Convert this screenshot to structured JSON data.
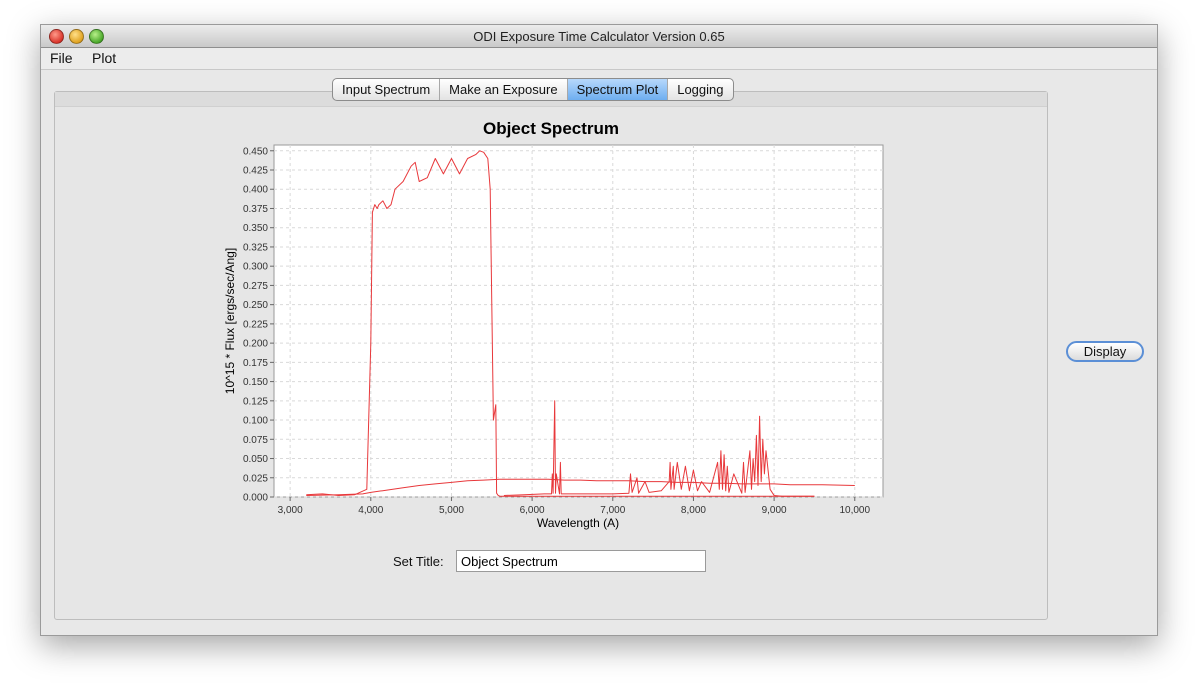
{
  "window": {
    "title": "ODI Exposure Time Calculator Version 0.65"
  },
  "menu": {
    "items": [
      "File",
      "Plot"
    ]
  },
  "tabs": [
    {
      "label": "Input Spectrum",
      "active": false
    },
    {
      "label": "Make an Exposure",
      "active": false
    },
    {
      "label": "Spectrum Plot",
      "active": true
    },
    {
      "label": "Logging",
      "active": false
    }
  ],
  "colors": {
    "series": "#e8383b",
    "tab_active": "#6eaef0",
    "button_border": "#5b8fd6"
  },
  "chart_data": {
    "type": "line",
    "title": "Object Spectrum",
    "xlabel": "Wavelength (A)",
    "ylabel": "10^15 * Flux [ergs/sec/Ang]",
    "xlim": [
      2800,
      10350
    ],
    "ylim": [
      0,
      0.4575
    ],
    "x_ticks": [
      "3,000",
      "4,000",
      "5,000",
      "6,000",
      "7,000",
      "8,000",
      "9,000",
      "10,000"
    ],
    "y_ticks": [
      "0.000",
      "0.025",
      "0.050",
      "0.075",
      "0.100",
      "0.125",
      "0.150",
      "0.175",
      "0.200",
      "0.225",
      "0.250",
      "0.275",
      "0.300",
      "0.325",
      "0.350",
      "0.375",
      "0.400",
      "0.425",
      "0.450"
    ],
    "grid": true,
    "series": [
      {
        "x": [
          3200,
          3400,
          3600,
          3800,
          3950,
          4000,
          4020,
          4050,
          4080,
          4100,
          4150,
          4200,
          4250,
          4300,
          4400,
          4500,
          4550,
          4600,
          4700,
          4800,
          4900,
          5000,
          5100,
          5200,
          5300,
          5350,
          5400,
          5450,
          5480,
          5500,
          5520,
          5550,
          5560,
          5580,
          5600,
          6000,
          9500
        ],
        "y": [
          0.003,
          0.004,
          0.002,
          0.003,
          0.01,
          0.2,
          0.37,
          0.38,
          0.375,
          0.38,
          0.385,
          0.375,
          0.38,
          0.4,
          0.41,
          0.43,
          0.435,
          0.41,
          0.415,
          0.44,
          0.42,
          0.44,
          0.42,
          0.44,
          0.445,
          0.45,
          0.448,
          0.44,
          0.4,
          0.25,
          0.1,
          0.12,
          0.005,
          0.002,
          0.001,
          0.001,
          0.001
        ]
      },
      {
        "x": [
          3200,
          3600,
          3900,
          4000,
          4200,
          4400,
          4600,
          4800,
          5000,
          5200,
          5400,
          5600,
          5800,
          6000,
          6200,
          6400,
          6600,
          6800,
          7000,
          7200,
          7400,
          7600,
          7800,
          8000,
          8200,
          8400,
          8600,
          8800,
          9000,
          9200,
          9600,
          10000
        ],
        "y": [
          0.002,
          0.003,
          0.004,
          0.006,
          0.009,
          0.012,
          0.015,
          0.017,
          0.019,
          0.021,
          0.022,
          0.023,
          0.023,
          0.023,
          0.023,
          0.022,
          0.022,
          0.021,
          0.021,
          0.021,
          0.02,
          0.02,
          0.019,
          0.019,
          0.018,
          0.018,
          0.017,
          0.017,
          0.017,
          0.016,
          0.016,
          0.015
        ]
      },
      {
        "x": [
          5650,
          5900,
          6150,
          6240,
          6250,
          6260,
          6280,
          6290,
          6300,
          6340,
          6350,
          6360,
          6500,
          6800,
          7000,
          7200,
          7220,
          7240,
          7300,
          7320,
          7400,
          7450,
          7600,
          7700,
          7710,
          7720,
          7750,
          7760,
          7800,
          7850,
          7900,
          7950,
          8000,
          8050,
          8100,
          8200,
          8300,
          8320,
          8340,
          8360,
          8380,
          8400,
          8420,
          8440,
          8500,
          8600,
          8620,
          8640,
          8700,
          8720,
          8740,
          8760,
          8780,
          8800,
          8820,
          8840,
          8860,
          8880,
          8900,
          8950,
          9000,
          9100,
          9500
        ],
        "y": [
          0.002,
          0.003,
          0.004,
          0.004,
          0.03,
          0.005,
          0.125,
          0.005,
          0.03,
          0.004,
          0.045,
          0.004,
          0.004,
          0.004,
          0.004,
          0.005,
          0.03,
          0.006,
          0.025,
          0.005,
          0.02,
          0.006,
          0.008,
          0.02,
          0.045,
          0.01,
          0.04,
          0.01,
          0.045,
          0.01,
          0.04,
          0.008,
          0.035,
          0.008,
          0.02,
          0.006,
          0.045,
          0.01,
          0.06,
          0.01,
          0.055,
          0.008,
          0.04,
          0.006,
          0.03,
          0.005,
          0.045,
          0.006,
          0.06,
          0.01,
          0.05,
          0.02,
          0.08,
          0.015,
          0.105,
          0.02,
          0.075,
          0.03,
          0.06,
          0.01,
          0.002,
          0.001,
          0.001
        ]
      }
    ]
  },
  "set_title": {
    "label": "Set Title:",
    "value": "Object Spectrum"
  },
  "display_button": {
    "label": "Display"
  }
}
